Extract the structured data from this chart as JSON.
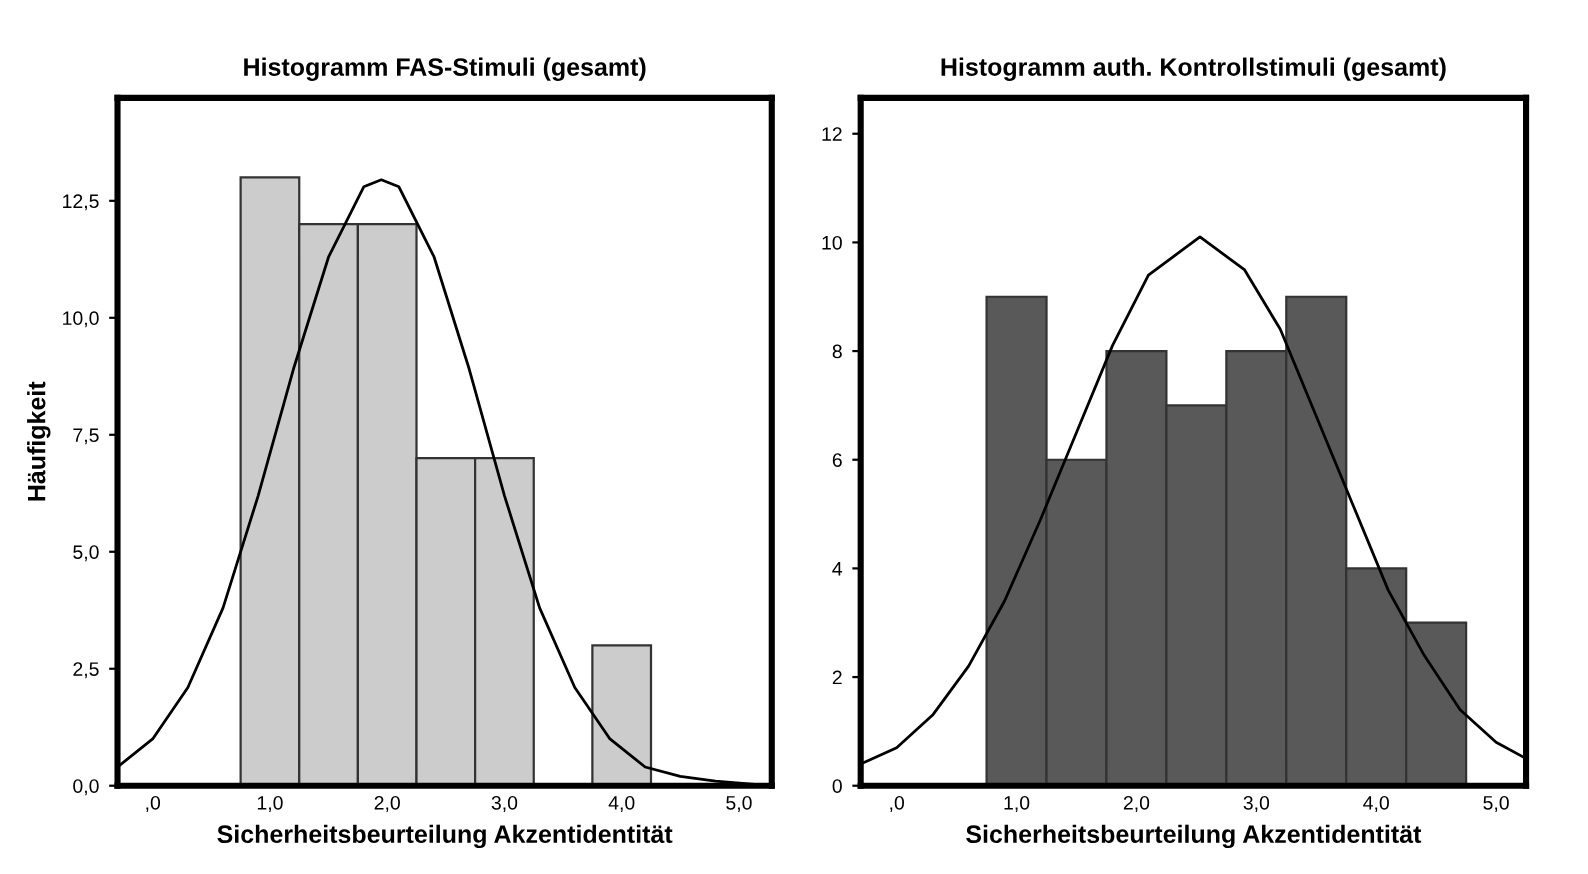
{
  "chart_data": [
    {
      "type": "histogram",
      "title": "Histogramm FAS-Stimuli (gesamt)",
      "xlabel": "Sicherheitsbeurteilung Akzentidentität",
      "ylabel": "Häufigkeit",
      "bins": [
        0.75,
        1.25,
        1.75,
        2.25,
        2.75,
        3.25,
        3.75,
        4.25
      ],
      "values": [
        13,
        12,
        12,
        7,
        7,
        0,
        3
      ],
      "color": "#cccccc",
      "series": [
        {
          "type": "line",
          "color": "#000000",
          "x": [
            -0.3,
            0.0,
            0.3,
            0.6,
            0.9,
            1.2,
            1.5,
            1.8,
            1.95,
            2.1,
            2.4,
            2.7,
            3.0,
            3.3,
            3.6,
            3.9,
            4.2,
            4.5,
            4.8,
            5.28
          ],
          "values": [
            0.4,
            1.0,
            2.1,
            3.8,
            6.2,
            8.9,
            11.3,
            12.8,
            12.95,
            12.8,
            11.3,
            8.9,
            6.2,
            3.8,
            2.1,
            1.0,
            0.4,
            0.2,
            0.1,
            0.0
          ]
        }
      ],
      "xlim": [
        -0.3,
        5.28
      ],
      "ylim": [
        0,
        14.7
      ],
      "xticks": [
        {
          "value": 0,
          "label": ",0"
        },
        {
          "value": 1,
          "label": "1,0"
        },
        {
          "value": 2,
          "label": "2,0"
        },
        {
          "value": 3,
          "label": "3,0"
        },
        {
          "value": 4,
          "label": "4,0"
        },
        {
          "value": 5,
          "label": "5,0"
        }
      ],
      "yticks": [
        {
          "value": 0,
          "label": "0,0"
        },
        {
          "value": 2.5,
          "label": "2,5"
        },
        {
          "value": 5,
          "label": "5,0"
        },
        {
          "value": 7.5,
          "label": "7,5"
        },
        {
          "value": 10,
          "label": "10,0"
        },
        {
          "value": 12.5,
          "label": "12,5"
        }
      ],
      "grid": false,
      "legend": false
    },
    {
      "type": "histogram",
      "title": "Histogramm auth. Kontrollstimuli (gesamt)",
      "xlabel": "Sicherheitsbeurteilung Akzentidentität",
      "bins": [
        0.75,
        1.25,
        1.75,
        2.25,
        2.75,
        3.25,
        3.75,
        4.25,
        4.75
      ],
      "values": [
        9,
        6,
        8,
        7,
        8,
        9,
        4,
        3
      ],
      "color": "#595959",
      "series": [
        {
          "type": "line",
          "color": "#000000",
          "x": [
            -0.3,
            0.0,
            0.3,
            0.6,
            0.9,
            1.2,
            1.5,
            1.8,
            2.1,
            2.53,
            2.9,
            3.2,
            3.5,
            3.8,
            4.1,
            4.4,
            4.7,
            5.0,
            5.25
          ],
          "values": [
            0.4,
            0.7,
            1.3,
            2.2,
            3.4,
            4.9,
            6.5,
            8.1,
            9.4,
            10.1,
            9.5,
            8.4,
            6.8,
            5.2,
            3.6,
            2.4,
            1.4,
            0.8,
            0.5
          ]
        }
      ],
      "xlim": [
        -0.3,
        5.25
      ],
      "ylim": [
        0,
        12.66
      ],
      "xticks": [
        {
          "value": 0,
          "label": ",0"
        },
        {
          "value": 1,
          "label": "1,0"
        },
        {
          "value": 2,
          "label": "2,0"
        },
        {
          "value": 3,
          "label": "3,0"
        },
        {
          "value": 4,
          "label": "4,0"
        },
        {
          "value": 5,
          "label": "5,0"
        }
      ],
      "yticks": [
        0,
        2,
        4,
        6,
        8,
        10,
        12
      ],
      "grid": false,
      "legend": false
    }
  ]
}
